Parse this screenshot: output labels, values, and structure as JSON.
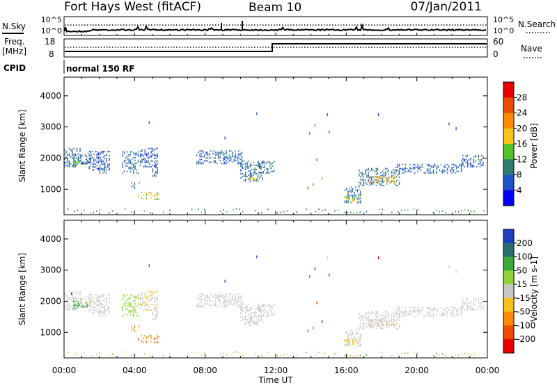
{
  "header": {
    "station": "Fort Hays West (fitACF)",
    "beam": "Beam 10",
    "date": "07/Jan/2011"
  },
  "status_panels": {
    "nsky_label": "N.Sky",
    "nsearch_label": "N.Search",
    "noise_tick_high": "10^5",
    "noise_tick_low": "10^0",
    "freq_label": "Freq.",
    "freq_unit": "[MHz]",
    "freq_ticks": [
      "18",
      "8"
    ],
    "nave_label": "Nave",
    "nave_ticks": [
      "60",
      "0"
    ],
    "cpid_label": "CPID",
    "cpid_value": "normal 150 RF"
  },
  "chart_data": [
    {
      "type": "heatmap",
      "parameter": "Power",
      "ylabel": "Slant Range [km]",
      "ylim": [
        180,
        4600
      ],
      "yticks": [
        1000,
        2000,
        3000,
        4000
      ],
      "xlim": [
        0,
        24
      ],
      "colorbar_label": "Power [dB]",
      "colorbar_ticks": [
        "4",
        "8",
        "12",
        "16",
        "20",
        "24",
        "28"
      ],
      "colorbar_colors": [
        "#0000ff",
        "#1c53c9",
        "#2e7d6e",
        "#55c228",
        "#f7c31e",
        "#fc8b03",
        "#ec4c00",
        "#e60000"
      ]
    },
    {
      "type": "heatmap",
      "parameter": "Velocity",
      "ylabel": "Slant Range [km]",
      "ylim": [
        180,
        4600
      ],
      "yticks": [
        1000,
        2000,
        3000,
        4000
      ],
      "xlim": [
        0,
        24
      ],
      "xlabel": "Time UT",
      "xticks": [
        "00:00",
        "04:00",
        "08:00",
        "12:00",
        "16:00",
        "20:00",
        "00:00"
      ],
      "colorbar_label": "Velocity [m s-1]",
      "colorbar_ticks": [
        "200",
        "100",
        "50",
        "15",
        "-15",
        "-50",
        "-100",
        "-200"
      ],
      "colorbar_colors": [
        "#1e3fbf",
        "#2c6e6f",
        "#3aa83a",
        "#8fd33a",
        "#c8c8c8",
        "#f5c21e",
        "#fb8a06",
        "#ee4a00",
        "#e60000"
      ]
    }
  ]
}
